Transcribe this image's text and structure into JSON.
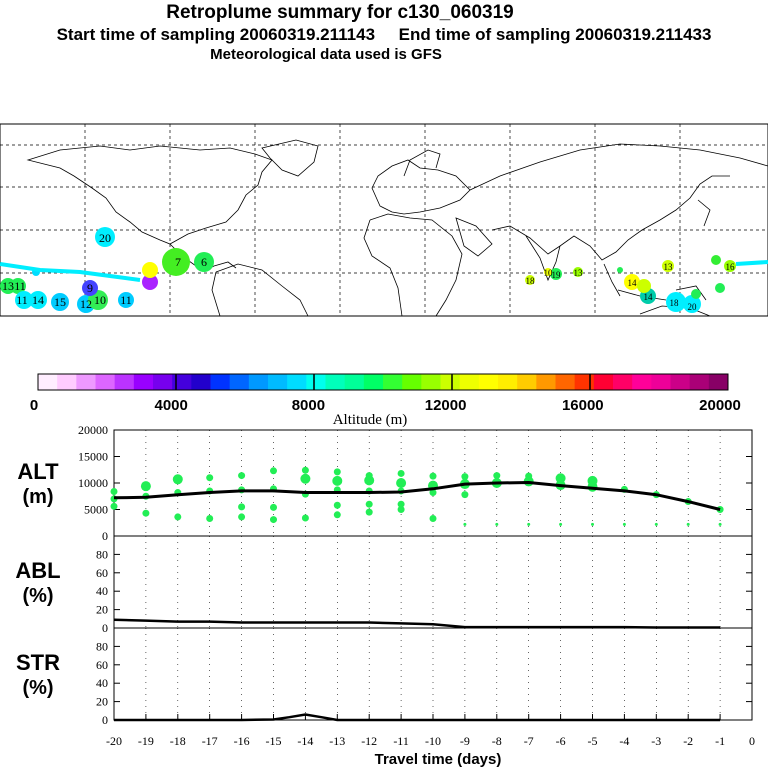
{
  "header": {
    "title": "Retroplume summary for c130_060319",
    "start_label": "Start time of sampling 20060319.211143",
    "end_label": "End time of sampling 20060319.211433",
    "met_label": "Meteorological data used is GFS"
  },
  "colors": {
    "plume_green": "#22ee55",
    "mean_line": "#000000",
    "grid": "#000000"
  },
  "colorbar": {
    "tick_labels": [
      "0",
      "4000",
      "8000",
      "12000",
      "16000",
      "20000"
    ],
    "label": "Altitude (m)",
    "colors": [
      "#ffeeff",
      "#ffccff",
      "#ee99ff",
      "#dd66ff",
      "#bb33ff",
      "#9900ff",
      "#7700ee",
      "#4400dd",
      "#2200cc",
      "#0033ff",
      "#0066ff",
      "#0099ff",
      "#00bbff",
      "#00ddff",
      "#00ffee",
      "#00ffbb",
      "#00ff99",
      "#00ff66",
      "#33ff33",
      "#66ff00",
      "#99ff00",
      "#ccff00",
      "#eeff00",
      "#ffff00",
      "#ffee00",
      "#ffcc00",
      "#ff9900",
      "#ff6600",
      "#ff3300",
      "#ff0033",
      "#ff0066",
      "#ff0099",
      "#ee0099",
      "#cc0088",
      "#aa0077",
      "#880066"
    ]
  },
  "map_labels": [
    "20",
    "13",
    "11",
    "11",
    "14",
    "15",
    "12",
    "10",
    "11",
    "9",
    "7",
    "6",
    "18",
    "19",
    "10",
    "13",
    "14",
    "14",
    "18",
    "20",
    "13",
    "16"
  ],
  "chart_data": [
    {
      "type": "scatter",
      "panel": "ALT",
      "ylabel": "ALT",
      "yunit": "(m)",
      "ylim": [
        0,
        20000
      ],
      "yticks": [
        "0",
        "5000",
        "10000",
        "15000",
        "20000"
      ],
      "xlim": [
        -20,
        0
      ],
      "mean_line": {
        "x": [
          -20,
          -19,
          -18,
          -17,
          -16,
          -15,
          -14,
          -13,
          -12,
          -11,
          -10,
          -9,
          -8,
          -7,
          -6,
          -5,
          -4,
          -3,
          -2,
          -1
        ],
        "y": [
          7200,
          7300,
          7800,
          8200,
          8500,
          8500,
          8200,
          8200,
          8200,
          8300,
          8900,
          9800,
          10000,
          10100,
          9500,
          9000,
          8500,
          7800,
          6500,
          5000
        ]
      },
      "points": [
        {
          "x": -20,
          "y": 7000
        },
        {
          "x": -20,
          "y": 8400
        },
        {
          "x": -20,
          "y": 5600
        },
        {
          "x": -19,
          "y": 7500
        },
        {
          "x": -19,
          "y": 9400
        },
        {
          "x": -19,
          "y": 4300
        },
        {
          "x": -18,
          "y": 8200
        },
        {
          "x": -18,
          "y": 10700
        },
        {
          "x": -18,
          "y": 3600
        },
        {
          "x": -17,
          "y": 8500
        },
        {
          "x": -17,
          "y": 11000
        },
        {
          "x": -17,
          "y": 3300
        },
        {
          "x": -16,
          "y": 8700
        },
        {
          "x": -16,
          "y": 11400
        },
        {
          "x": -16,
          "y": 5500
        },
        {
          "x": -16,
          "y": 3600
        },
        {
          "x": -15,
          "y": 8900
        },
        {
          "x": -15,
          "y": 12300
        },
        {
          "x": -15,
          "y": 5400
        },
        {
          "x": -15,
          "y": 3100
        },
        {
          "x": -14,
          "y": 7900
        },
        {
          "x": -14,
          "y": 12400
        },
        {
          "x": -14,
          "y": 10800
        },
        {
          "x": -14,
          "y": 3400
        },
        {
          "x": -13,
          "y": 8700
        },
        {
          "x": -13,
          "y": 12100
        },
        {
          "x": -13,
          "y": 10400
        },
        {
          "x": -13,
          "y": 5800
        },
        {
          "x": -13,
          "y": 4000
        },
        {
          "x": -12,
          "y": 8500
        },
        {
          "x": -12,
          "y": 11400
        },
        {
          "x": -12,
          "y": 10500
        },
        {
          "x": -12,
          "y": 6000
        },
        {
          "x": -12,
          "y": 4500
        },
        {
          "x": -11,
          "y": 8500
        },
        {
          "x": -11,
          "y": 11800
        },
        {
          "x": -11,
          "y": 10000
        },
        {
          "x": -11,
          "y": 6000
        },
        {
          "x": -11,
          "y": 5000
        },
        {
          "x": -10,
          "y": 9500
        },
        {
          "x": -10,
          "y": 11300
        },
        {
          "x": -10,
          "y": 8200
        },
        {
          "x": -10,
          "y": 3300
        },
        {
          "x": -9,
          "y": 9800
        },
        {
          "x": -9,
          "y": 11200
        },
        {
          "x": -9,
          "y": 7800
        },
        {
          "x": -9,
          "y": 2200
        },
        {
          "x": -8,
          "y": 10000
        },
        {
          "x": -8,
          "y": 11400
        },
        {
          "x": -8,
          "y": 2200
        },
        {
          "x": -7,
          "y": 10300
        },
        {
          "x": -7,
          "y": 11300
        },
        {
          "x": -7,
          "y": 2200
        },
        {
          "x": -6,
          "y": 9600
        },
        {
          "x": -6,
          "y": 10900
        },
        {
          "x": -6,
          "y": 2200
        },
        {
          "x": -5,
          "y": 9300
        },
        {
          "x": -5,
          "y": 10400
        },
        {
          "x": -5,
          "y": 2200
        },
        {
          "x": -4,
          "y": 8800
        },
        {
          "x": -4,
          "y": 2200
        },
        {
          "x": -3,
          "y": 7800
        },
        {
          "x": -3,
          "y": 2200
        },
        {
          "x": -2,
          "y": 6500
        },
        {
          "x": -2,
          "y": 2200
        },
        {
          "x": -1,
          "y": 5000
        },
        {
          "x": -1,
          "y": 2200
        }
      ]
    },
    {
      "type": "line",
      "panel": "ABL",
      "ylabel": "ABL",
      "yunit": "(%)",
      "ylim": [
        0,
        100
      ],
      "yticks": [
        "0",
        "20",
        "40",
        "60",
        "80"
      ],
      "x": [
        -20,
        -19,
        -18,
        -17,
        -16,
        -15,
        -14,
        -13,
        -12,
        -11,
        -10,
        -9,
        -8,
        -7,
        -6,
        -5,
        -4,
        -3,
        -2,
        -1
      ],
      "values": [
        9,
        8,
        7,
        7,
        6,
        6,
        6,
        6,
        6,
        5,
        4,
        1,
        1,
        1,
        1,
        1,
        1,
        0.5,
        0.5,
        0.5
      ]
    },
    {
      "type": "line",
      "panel": "STR",
      "ylabel": "STR",
      "yunit": "(%)",
      "ylim": [
        0,
        100
      ],
      "yticks": [
        "0",
        "20",
        "40",
        "60",
        "80"
      ],
      "x": [
        -20,
        -19,
        -18,
        -17,
        -16,
        -15,
        -14.5,
        -14,
        -13.5,
        -13,
        -12,
        -11,
        -10,
        -9,
        -8,
        -7,
        -6,
        -5,
        -4,
        -3,
        -2,
        -1
      ],
      "values": [
        0,
        0,
        0,
        0,
        0,
        0.5,
        3,
        6,
        3,
        0,
        0,
        0,
        0,
        0,
        0,
        0,
        0,
        0,
        0,
        0,
        0,
        0
      ]
    }
  ],
  "xaxis": {
    "label": "Travel time (days)",
    "ticks": [
      "-20",
      "-19",
      "-18",
      "-17",
      "-16",
      "-15",
      "-14",
      "-13",
      "-12",
      "-11",
      "-10",
      "-9",
      "-8",
      "-7",
      "-6",
      "-5",
      "-4",
      "-3",
      "-2",
      "-1",
      "0"
    ]
  }
}
